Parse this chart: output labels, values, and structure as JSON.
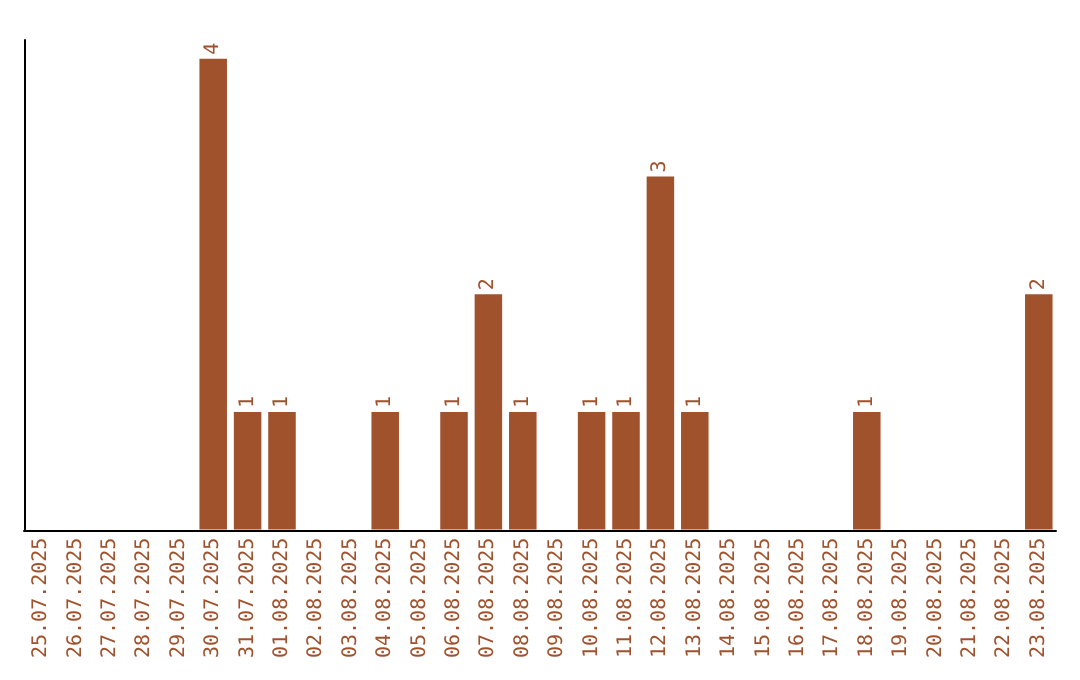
{
  "chart_data": {
    "type": "bar",
    "categories": [
      "25.07.2025",
      "26.07.2025",
      "27.07.2025",
      "28.07.2025",
      "29.07.2025",
      "30.07.2025",
      "31.07.2025",
      "01.08.2025",
      "02.08.2025",
      "03.08.2025",
      "04.08.2025",
      "05.08.2025",
      "06.08.2025",
      "07.08.2025",
      "08.08.2025",
      "09.08.2025",
      "10.08.2025",
      "11.08.2025",
      "12.08.2025",
      "13.08.2025",
      "14.08.2025",
      "15.08.2025",
      "16.08.2025",
      "17.08.2025",
      "18.08.2025",
      "19.08.2025",
      "20.08.2025",
      "21.08.2025",
      "22.08.2025",
      "23.08.2025"
    ],
    "values": [
      0,
      0,
      0,
      0,
      0,
      4,
      1,
      1,
      0,
      0,
      1,
      0,
      1,
      2,
      1,
      0,
      1,
      1,
      3,
      1,
      0,
      0,
      0,
      0,
      1,
      0,
      0,
      0,
      0,
      2
    ],
    "value_labels": [
      null,
      null,
      null,
      null,
      null,
      "4",
      "1",
      "1",
      null,
      null,
      "1",
      null,
      "1",
      "2",
      "1",
      null,
      "1",
      "1",
      "3",
      "1",
      null,
      null,
      null,
      null,
      "1",
      null,
      null,
      null,
      null,
      "2"
    ],
    "color": "#a0522d"
  }
}
